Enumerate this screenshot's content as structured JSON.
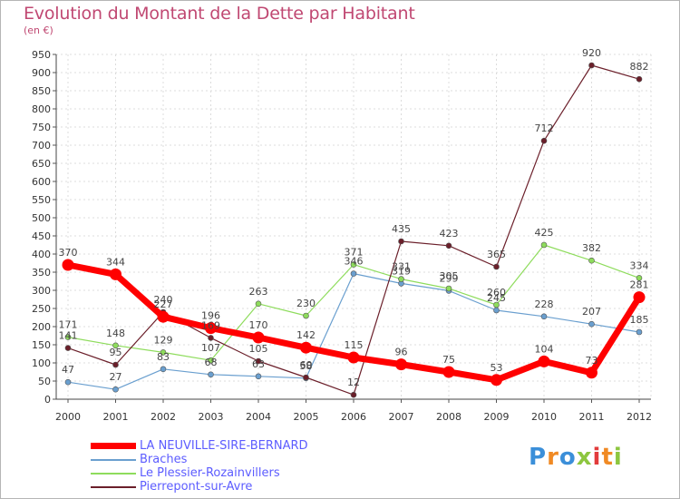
{
  "title": "Evolution du Montant de la Dette par Habitant",
  "subtitle": "(en €)",
  "logo": {
    "text": "Proxiti",
    "colors": [
      "#3b8fd9",
      "#f08a24",
      "#3b8fd9",
      "#8dc63f",
      "#e23b3b",
      "#f08a24",
      "#8dc63f"
    ]
  },
  "chart_data": {
    "type": "line",
    "x": [
      "2000",
      "2001",
      "2002",
      "2003",
      "2004",
      "2005",
      "2006",
      "2007",
      "2008",
      "2009",
      "2010",
      "2011",
      "2012"
    ],
    "ylim": [
      0,
      950
    ],
    "yticks": [
      0,
      50,
      100,
      150,
      200,
      250,
      300,
      350,
      400,
      450,
      500,
      550,
      600,
      650,
      700,
      750,
      800,
      850,
      900,
      950
    ],
    "grid": true,
    "legend_position": "bottom-left",
    "series": [
      {
        "name": "LA NEUVILLE-SIRE-BERNARD",
        "color": "#ff0000",
        "values": [
          370,
          344,
          227,
          196,
          170,
          142,
          115,
          96,
          75,
          53,
          104,
          73,
          281
        ]
      },
      {
        "name": "Braches",
        "color": "#6a9fcf",
        "values": [
          47,
          27,
          83,
          68,
          63,
          58,
          346,
          319,
          299,
          245,
          228,
          207,
          185
        ]
      },
      {
        "name": "Le Plessier-Rozainvillers",
        "color": "#8edc5c",
        "values": [
          171,
          148,
          129,
          107,
          263,
          230,
          371,
          331,
          305,
          260,
          425,
          382,
          334
        ]
      },
      {
        "name": "Pierrepont-sur-Avre",
        "color": "#6b1f2a",
        "values": [
          141,
          95,
          240,
          169,
          105,
          60,
          12,
          435,
          423,
          365,
          712,
          920,
          882
        ]
      }
    ]
  }
}
